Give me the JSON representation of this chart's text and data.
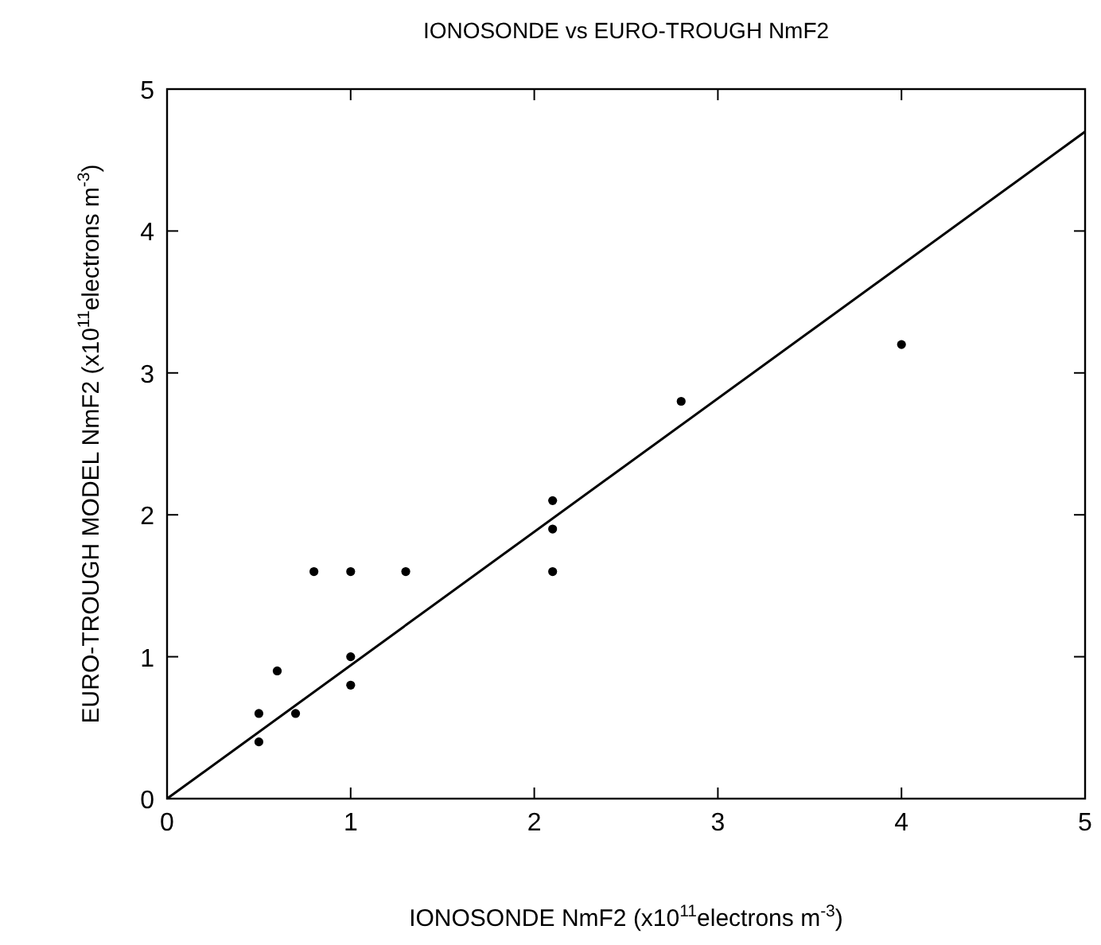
{
  "chart_data": {
    "type": "scatter",
    "title": "IONOSONDE vs EURO-TROUGH NmF2",
    "xlabel": "IONOSONDE NmF2 (x10$^{11}$electrons m$^{-3}$)",
    "ylabel": "EURO-TROUGH MODEL NmF2 (x10$^{11}$electrons m$^{-3}$)",
    "xlim": [
      0,
      5
    ],
    "ylim": [
      0,
      5
    ],
    "xticks": [
      0,
      1,
      2,
      3,
      4,
      5
    ],
    "yticks": [
      0,
      1,
      2,
      3,
      4,
      5
    ],
    "marker": "circle",
    "grid": false,
    "series": [
      {
        "color": "#000000",
        "x": [
          0.5,
          0.5,
          0.6,
          0.7,
          0.8,
          1.0,
          1.3,
          1.0,
          1.0,
          2.1,
          2.1,
          2.1,
          2.8,
          4.0
        ],
        "values": [
          0.6,
          0.4,
          0.9,
          0.6,
          1.6,
          1.6,
          1.6,
          1.0,
          0.8,
          2.1,
          1.9,
          1.6,
          2.8,
          3.2
        ]
      },
      {
        "type": "line",
        "color": "#000000",
        "x": [
          0,
          5
        ],
        "values": [
          0,
          4.7
        ],
        "marker": "none",
        "line_style": "solid"
      }
    ]
  }
}
